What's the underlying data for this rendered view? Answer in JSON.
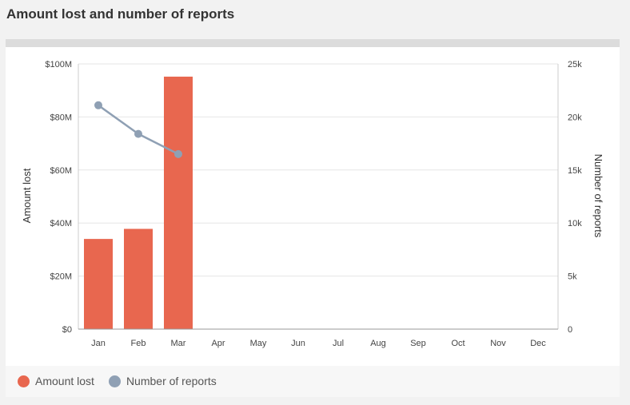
{
  "page": {
    "title": "Amount lost and number of reports"
  },
  "colors": {
    "amount_lost": "#e8674f",
    "number_of_reports": "#8fa0b4",
    "grid": "#e6e6e6",
    "axis": "#cccccc"
  },
  "chart_data": {
    "type": "bar",
    "categories": [
      "Jan",
      "Feb",
      "Mar",
      "Apr",
      "May",
      "Jun",
      "Jul",
      "Aug",
      "Sep",
      "Oct",
      "Nov",
      "Dec"
    ],
    "series": [
      {
        "name": "Amount lost",
        "type": "bar",
        "axis": "left",
        "values": [
          34000000,
          37800000,
          95200000,
          null,
          null,
          null,
          null,
          null,
          null,
          null,
          null,
          null
        ]
      },
      {
        "name": "Number of reports",
        "type": "line",
        "axis": "right",
        "values": [
          21100,
          18400,
          16500,
          null,
          null,
          null,
          null,
          null,
          null,
          null,
          null,
          null
        ]
      }
    ],
    "ylabel": "Amount lost",
    "ylabel_right": "Number of reports",
    "ylim": [
      0,
      100000000
    ],
    "ylim_right": [
      0,
      25000
    ],
    "yticks": [
      0,
      20000000,
      40000000,
      60000000,
      80000000,
      100000000
    ],
    "ytick_labels": [
      "$0",
      "$20M",
      "$40M",
      "$60M",
      "$80M",
      "$100M"
    ],
    "yticks_right": [
      0,
      5000,
      10000,
      15000,
      20000,
      25000
    ],
    "ytick_labels_right": [
      "0",
      "5k",
      "10k",
      "15k",
      "20k",
      "25k"
    ],
    "grid": true,
    "legend_position": "bottom-left"
  }
}
